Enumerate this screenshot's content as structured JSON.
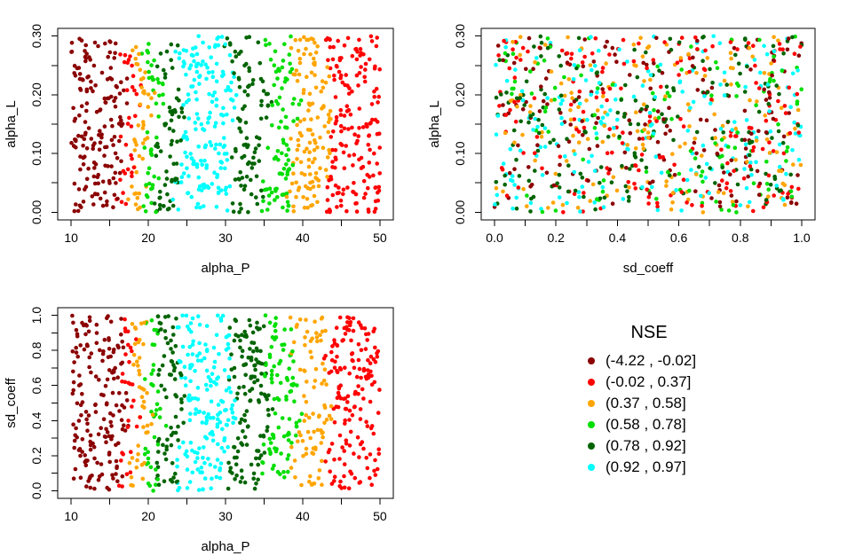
{
  "palette": {
    "darkred": "#8B0000",
    "red": "#FF0000",
    "orange": "#FFA500",
    "green": "#00DE00",
    "darkgreen": "#006400",
    "cyan": "#00FFFF"
  },
  "legend": {
    "title": "NSE",
    "entries": [
      {
        "label": "(-4.22 , -0.02]",
        "color": "darkred"
      },
      {
        "label": "(-0.02 , 0.37]",
        "color": "red"
      },
      {
        "label": "(0.37 , 0.58]",
        "color": "orange"
      },
      {
        "label": "(0.58 , 0.78]",
        "color": "green"
      },
      {
        "label": "(0.78 , 0.92]",
        "color": "darkgreen"
      },
      {
        "label": "(0.92 , 0.97]",
        "color": "cyan"
      }
    ]
  },
  "chart_data": [
    {
      "id": "alphaP-vs-alphaL",
      "type": "scatter",
      "xlabel": "alpha_P",
      "ylabel": "alpha_L",
      "xlim": [
        10,
        50
      ],
      "ylim": [
        0,
        0.3
      ],
      "x_ticks": [
        10,
        15,
        20,
        25,
        30,
        35,
        40,
        45,
        50
      ],
      "x_tick_labels": [
        {
          "v": 10,
          "t": "10"
        },
        {
          "v": 20,
          "t": "20"
        },
        {
          "v": 30,
          "t": "30"
        },
        {
          "v": 40,
          "t": "40"
        },
        {
          "v": 50,
          "t": "50"
        }
      ],
      "y_ticks": [
        0,
        0.05,
        0.1,
        0.15,
        0.2,
        0.25,
        0.3
      ],
      "y_tick_labels": [
        {
          "v": 0,
          "t": "0.00"
        },
        {
          "v": 0.1,
          "t": "0.10"
        },
        {
          "v": 0.2,
          "t": "0.20"
        },
        {
          "v": 0.3,
          "t": "0.30"
        }
      ],
      "n_points": 1000,
      "point_radius": 2.3,
      "grid": false,
      "color_structure": {
        "mode": "bands_x",
        "edge_wobble": 0.55,
        "edge_jitter": 0.9,
        "bands": [
          {
            "from": 10.0,
            "to": 16.8,
            "class": "darkred"
          },
          {
            "from": 16.8,
            "to": 18.2,
            "class": "red"
          },
          {
            "from": 18.2,
            "to": 19.9,
            "class": "orange"
          },
          {
            "from": 19.9,
            "to": 21.4,
            "class": "green"
          },
          {
            "from": 21.4,
            "to": 24.1,
            "class": "darkgreen"
          },
          {
            "from": 24.1,
            "to": 30.7,
            "class": "cyan"
          },
          {
            "from": 30.7,
            "to": 35.2,
            "class": "darkgreen"
          },
          {
            "from": 35.2,
            "to": 38.9,
            "class": "green"
          },
          {
            "from": 38.9,
            "to": 43.4,
            "class": "orange"
          },
          {
            "from": 43.4,
            "to": 50.0,
            "class": "red"
          }
        ]
      }
    },
    {
      "id": "sdcoeff-vs-alphaL",
      "type": "scatter",
      "xlabel": "sd_coeff",
      "ylabel": "alpha_L",
      "xlim": [
        0,
        1
      ],
      "ylim": [
        0,
        0.3
      ],
      "x_ticks": [
        0,
        0.1,
        0.2,
        0.3,
        0.4,
        0.5,
        0.6,
        0.7,
        0.8,
        0.9,
        1.0
      ],
      "x_tick_labels": [
        {
          "v": 0,
          "t": "0.0"
        },
        {
          "v": 0.2,
          "t": "0.2"
        },
        {
          "v": 0.4,
          "t": "0.4"
        },
        {
          "v": 0.6,
          "t": "0.6"
        },
        {
          "v": 0.8,
          "t": "0.8"
        },
        {
          "v": 1.0,
          "t": "1.0"
        }
      ],
      "y_ticks": [
        0,
        0.05,
        0.1,
        0.15,
        0.2,
        0.25,
        0.3
      ],
      "y_tick_labels": [
        {
          "v": 0,
          "t": "0.00"
        },
        {
          "v": 0.1,
          "t": "0.10"
        },
        {
          "v": 0.2,
          "t": "0.20"
        },
        {
          "v": 0.3,
          "t": "0.30"
        }
      ],
      "n_points": 1000,
      "point_radius": 2.3,
      "grid": false,
      "color_structure": {
        "mode": "random",
        "weights": [
          {
            "class": "darkred",
            "w": 0.17
          },
          {
            "class": "red",
            "w": 0.2
          },
          {
            "class": "orange",
            "w": 0.155
          },
          {
            "class": "green",
            "w": 0.13
          },
          {
            "class": "darkgreen",
            "w": 0.18
          },
          {
            "class": "cyan",
            "w": 0.165
          }
        ]
      }
    },
    {
      "id": "alphaP-vs-sdcoeff",
      "type": "scatter",
      "xlabel": "alpha_P",
      "ylabel": "sd_coeff",
      "xlim": [
        10,
        50
      ],
      "ylim": [
        0,
        1
      ],
      "x_ticks": [
        10,
        15,
        20,
        25,
        30,
        35,
        40,
        45,
        50
      ],
      "x_tick_labels": [
        {
          "v": 10,
          "t": "10"
        },
        {
          "v": 20,
          "t": "20"
        },
        {
          "v": 30,
          "t": "30"
        },
        {
          "v": 40,
          "t": "40"
        },
        {
          "v": 50,
          "t": "50"
        }
      ],
      "y_ticks": [
        0,
        0.1,
        0.2,
        0.3,
        0.4,
        0.5,
        0.6,
        0.7,
        0.8,
        0.9,
        1.0
      ],
      "y_tick_labels": [
        {
          "v": 0,
          "t": "0.0"
        },
        {
          "v": 0.2,
          "t": "0.2"
        },
        {
          "v": 0.4,
          "t": "0.4"
        },
        {
          "v": 0.6,
          "t": "0.6"
        },
        {
          "v": 0.8,
          "t": "0.8"
        },
        {
          "v": 1.0,
          "t": "1.0"
        }
      ],
      "n_points": 1000,
      "point_radius": 2.3,
      "grid": false,
      "color_structure": {
        "mode": "bands_x",
        "edge_wobble": 0.55,
        "edge_jitter": 0.9,
        "bands": [
          {
            "from": 10.0,
            "to": 16.8,
            "class": "darkred"
          },
          {
            "from": 16.8,
            "to": 18.2,
            "class": "red"
          },
          {
            "from": 18.2,
            "to": 19.9,
            "class": "orange"
          },
          {
            "from": 19.9,
            "to": 21.4,
            "class": "green"
          },
          {
            "from": 21.4,
            "to": 24.1,
            "class": "darkgreen"
          },
          {
            "from": 24.1,
            "to": 30.7,
            "class": "cyan"
          },
          {
            "from": 30.7,
            "to": 35.2,
            "class": "darkgreen"
          },
          {
            "from": 35.2,
            "to": 38.9,
            "class": "green"
          },
          {
            "from": 38.9,
            "to": 43.4,
            "class": "orange"
          },
          {
            "from": 43.4,
            "to": 50.0,
            "class": "red"
          }
        ]
      }
    }
  ]
}
